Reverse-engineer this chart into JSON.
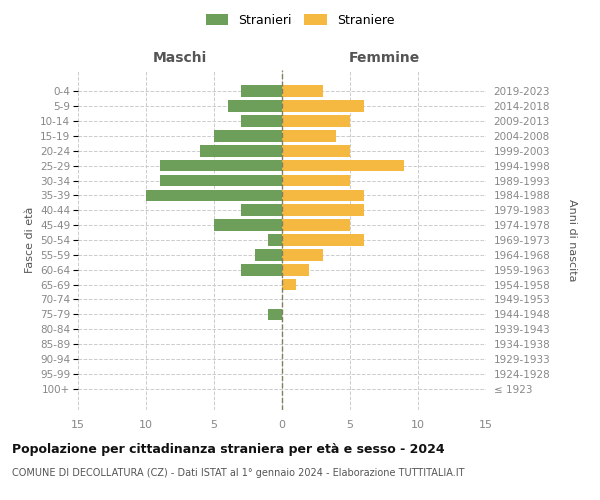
{
  "age_groups": [
    "100+",
    "95-99",
    "90-94",
    "85-89",
    "80-84",
    "75-79",
    "70-74",
    "65-69",
    "60-64",
    "55-59",
    "50-54",
    "45-49",
    "40-44",
    "35-39",
    "30-34",
    "25-29",
    "20-24",
    "15-19",
    "10-14",
    "5-9",
    "0-4"
  ],
  "birth_years": [
    "≤ 1923",
    "1924-1928",
    "1929-1933",
    "1934-1938",
    "1939-1943",
    "1944-1948",
    "1949-1953",
    "1954-1958",
    "1959-1963",
    "1964-1968",
    "1969-1973",
    "1974-1978",
    "1979-1983",
    "1984-1988",
    "1989-1993",
    "1994-1998",
    "1999-2003",
    "2004-2008",
    "2009-2013",
    "2014-2018",
    "2019-2023"
  ],
  "males": [
    0,
    0,
    0,
    0,
    0,
    1,
    0,
    0,
    3,
    2,
    1,
    5,
    3,
    10,
    9,
    9,
    6,
    5,
    3,
    4,
    3
  ],
  "females": [
    0,
    0,
    0,
    0,
    0,
    0,
    0,
    1,
    2,
    3,
    6,
    5,
    6,
    6,
    5,
    9,
    5,
    4,
    5,
    6,
    3
  ],
  "male_color": "#6d9e5a",
  "female_color": "#f5b942",
  "title": "Popolazione per cittadinanza straniera per età e sesso - 2024",
  "subtitle": "COMUNE DI DECOLLATURA (CZ) - Dati ISTAT al 1° gennaio 2024 - Elaborazione TUTTITALIA.IT",
  "ylabel_left": "Fasce di età",
  "ylabel_right": "Anni di nascita",
  "label_maschi": "Maschi",
  "label_femmine": "Femmine",
  "legend_males": "Stranieri",
  "legend_females": "Straniere",
  "xlim": 15,
  "background_color": "#ffffff",
  "grid_color": "#cccccc",
  "grid_linestyle": "--",
  "zero_line_color": "#808060",
  "tick_color": "#888888",
  "label_color": "#555555",
  "title_color": "#111111",
  "subtitle_color": "#555555"
}
